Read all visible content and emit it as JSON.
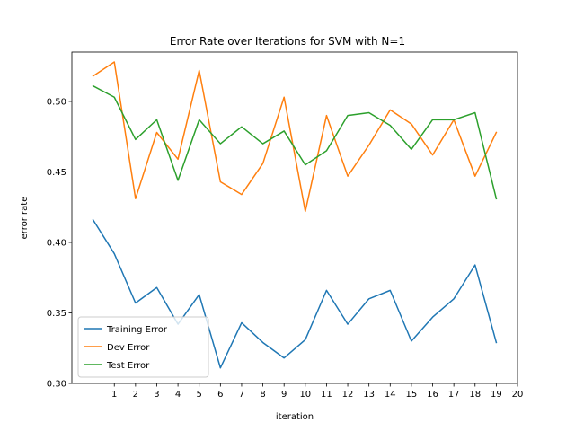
{
  "chart_data": {
    "type": "line",
    "title": "Error Rate over Iterations for SVM with N=1",
    "xlabel": "iteration",
    "ylabel": "error rate",
    "xlim": [
      -1,
      20
    ],
    "ylim": [
      0.3,
      0.535
    ],
    "xticks": [
      1,
      2,
      3,
      4,
      5,
      6,
      7,
      8,
      9,
      10,
      11,
      12,
      13,
      14,
      15,
      16,
      17,
      18,
      19,
      20
    ],
    "yticks": [
      0.3,
      0.35,
      0.4,
      0.45,
      0.5
    ],
    "ytick_labels": [
      "0.30",
      "0.35",
      "0.40",
      "0.45",
      "0.50"
    ],
    "x": [
      0,
      1,
      2,
      3,
      4,
      5,
      6,
      7,
      8,
      9,
      10,
      11,
      12,
      13,
      14,
      15,
      16,
      17,
      18,
      19
    ],
    "series": [
      {
        "name": "Training Error",
        "color": "#1f77b4",
        "values": [
          0.416,
          0.392,
          0.357,
          0.368,
          0.342,
          0.363,
          0.311,
          0.343,
          0.329,
          0.318,
          0.331,
          0.366,
          0.342,
          0.36,
          0.366,
          0.33,
          0.347,
          0.36,
          0.384,
          0.329
        ]
      },
      {
        "name": "Dev Error",
        "color": "#ff7f0e",
        "values": [
          0.518,
          0.528,
          0.431,
          0.478,
          0.459,
          0.522,
          0.443,
          0.434,
          0.456,
          0.503,
          0.422,
          0.49,
          0.447,
          0.469,
          0.494,
          0.484,
          0.462,
          0.487,
          0.447,
          0.478
        ]
      },
      {
        "name": "Test Error",
        "color": "#2ca02c",
        "values": [
          0.511,
          0.503,
          0.473,
          0.487,
          0.444,
          0.487,
          0.47,
          0.482,
          0.47,
          0.479,
          0.455,
          0.465,
          0.49,
          0.492,
          0.483,
          0.466,
          0.487,
          0.487,
          0.492,
          0.431
        ]
      }
    ],
    "grid": false,
    "legend_position": "lower-left"
  }
}
